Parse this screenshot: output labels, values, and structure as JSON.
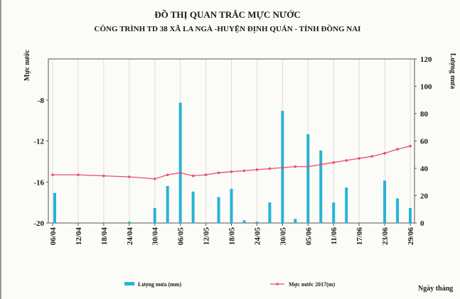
{
  "chart_data": {
    "type": "bar+line",
    "title": "ĐỒ THỊ QUAN TRẮC MỰC NƯỚC",
    "subtitle": "CÔNG TRÌNH TD 38 XÃ LA NGÀ -HUYỆN ĐỊNH QUÁN - TỈNH ĐỒNG NAI",
    "ylabel_left": "Mực nước",
    "ylabel_right": "Lượng mưa",
    "xlabel": "Ngày tháng",
    "ylim_left": [
      -20,
      -4
    ],
    "ylim_right": [
      0,
      120
    ],
    "yticks_left": [
      "-8",
      "-12",
      "-16",
      "-20"
    ],
    "yticks_right": [
      "120",
      "100",
      "80",
      "60",
      "40",
      "20",
      "0"
    ],
    "x_range_days": [
      0,
      84
    ],
    "x_ticks": [
      {
        "label": "06/04",
        "day": 0
      },
      {
        "label": "12/04",
        "day": 6
      },
      {
        "label": "18/04",
        "day": 12
      },
      {
        "label": "24/04",
        "day": 18
      },
      {
        "label": "30/04",
        "day": 24
      },
      {
        "label": "06/05",
        "day": 30
      },
      {
        "label": "12/05",
        "day": 36
      },
      {
        "label": "18/05",
        "day": 42
      },
      {
        "label": "24/05",
        "day": 48
      },
      {
        "label": "30/05",
        "day": 54
      },
      {
        "label": "05/06",
        "day": 60
      },
      {
        "label": "11/06",
        "day": 66
      },
      {
        "label": "17/06",
        "day": 72
      },
      {
        "label": "23/06",
        "day": 78
      },
      {
        "label": "29/06",
        "day": 84
      }
    ],
    "series": [
      {
        "name": "Lượng mưa (mm)",
        "kind": "bar",
        "axis": "right",
        "color": "#27b3d6",
        "points": [
          {
            "day": 0.5,
            "value": 22
          },
          {
            "day": 18,
            "value": 1
          },
          {
            "day": 24,
            "value": 11
          },
          {
            "day": 27,
            "value": 27
          },
          {
            "day": 30,
            "value": 88
          },
          {
            "day": 33,
            "value": 23
          },
          {
            "day": 39,
            "value": 19
          },
          {
            "day": 42,
            "value": 25
          },
          {
            "day": 45,
            "value": 2
          },
          {
            "day": 48,
            "value": 1
          },
          {
            "day": 51,
            "value": 15
          },
          {
            "day": 54,
            "value": 82
          },
          {
            "day": 57,
            "value": 3
          },
          {
            "day": 60,
            "value": 65
          },
          {
            "day": 63,
            "value": 53
          },
          {
            "day": 66,
            "value": 15
          },
          {
            "day": 69,
            "value": 26
          },
          {
            "day": 78,
            "value": 31
          },
          {
            "day": 81,
            "value": 18
          },
          {
            "day": 84,
            "value": 11
          }
        ]
      },
      {
        "name": "Mực nước 2017(m)",
        "kind": "line",
        "axis": "left",
        "color": "#e8506a",
        "points": [
          {
            "day": 0,
            "value": -15.3
          },
          {
            "day": 6,
            "value": -15.3
          },
          {
            "day": 12,
            "value": -15.4
          },
          {
            "day": 18,
            "value": -15.5
          },
          {
            "day": 24,
            "value": -15.7
          },
          {
            "day": 27,
            "value": -15.3
          },
          {
            "day": 30,
            "value": -15.1
          },
          {
            "day": 33,
            "value": -15.4
          },
          {
            "day": 36,
            "value": -15.3
          },
          {
            "day": 39,
            "value": -15.1
          },
          {
            "day": 42,
            "value": -15.0
          },
          {
            "day": 45,
            "value": -14.9
          },
          {
            "day": 48,
            "value": -14.8
          },
          {
            "day": 51,
            "value": -14.7
          },
          {
            "day": 54,
            "value": -14.6
          },
          {
            "day": 57,
            "value": -14.5
          },
          {
            "day": 60,
            "value": -14.5
          },
          {
            "day": 63,
            "value": -14.3
          },
          {
            "day": 66,
            "value": -14.1
          },
          {
            "day": 69,
            "value": -13.9
          },
          {
            "day": 72,
            "value": -13.7
          },
          {
            "day": 75,
            "value": -13.5
          },
          {
            "day": 78,
            "value": -13.2
          },
          {
            "day": 81,
            "value": -12.8
          },
          {
            "day": 84,
            "value": -12.5
          }
        ]
      }
    ],
    "grid": true,
    "legend_position": "bottom"
  }
}
